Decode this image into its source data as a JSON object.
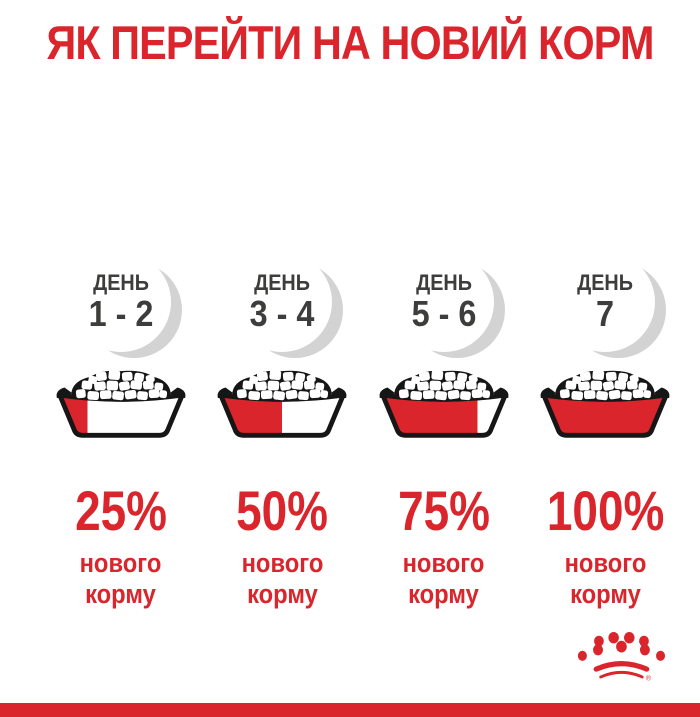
{
  "title": "ЯК ПЕРЕЙТИ НА НОВИЙ КОРМ",
  "columns": [
    {
      "day_label": "ДЕНЬ",
      "day_value": "1 - 2",
      "percent": "25%",
      "note_line1": "нового",
      "note_line2": "корму",
      "fill_pct": 25
    },
    {
      "day_label": "ДЕНЬ",
      "day_value": "3 - 4",
      "percent": "50%",
      "note_line1": "нового",
      "note_line2": "корму",
      "fill_pct": 50
    },
    {
      "day_label": "ДЕНЬ",
      "day_value": "5 - 6",
      "percent": "75%",
      "note_line1": "нового",
      "note_line2": "корму",
      "fill_pct": 75
    },
    {
      "day_label": "ДЕНЬ",
      "day_value": "7",
      "percent": "100%",
      "note_line1": "нового",
      "note_line2": "корму",
      "fill_pct": 100
    }
  ],
  "footer": {
    "brand_logo": "royal-canin-crown",
    "registered_mark": "®"
  },
  "colors": {
    "accent_red": "#d9252b",
    "text_dark": "#3d3d3c",
    "circle_shadow": "#d3d3d3",
    "outline_black": "#161616"
  }
}
